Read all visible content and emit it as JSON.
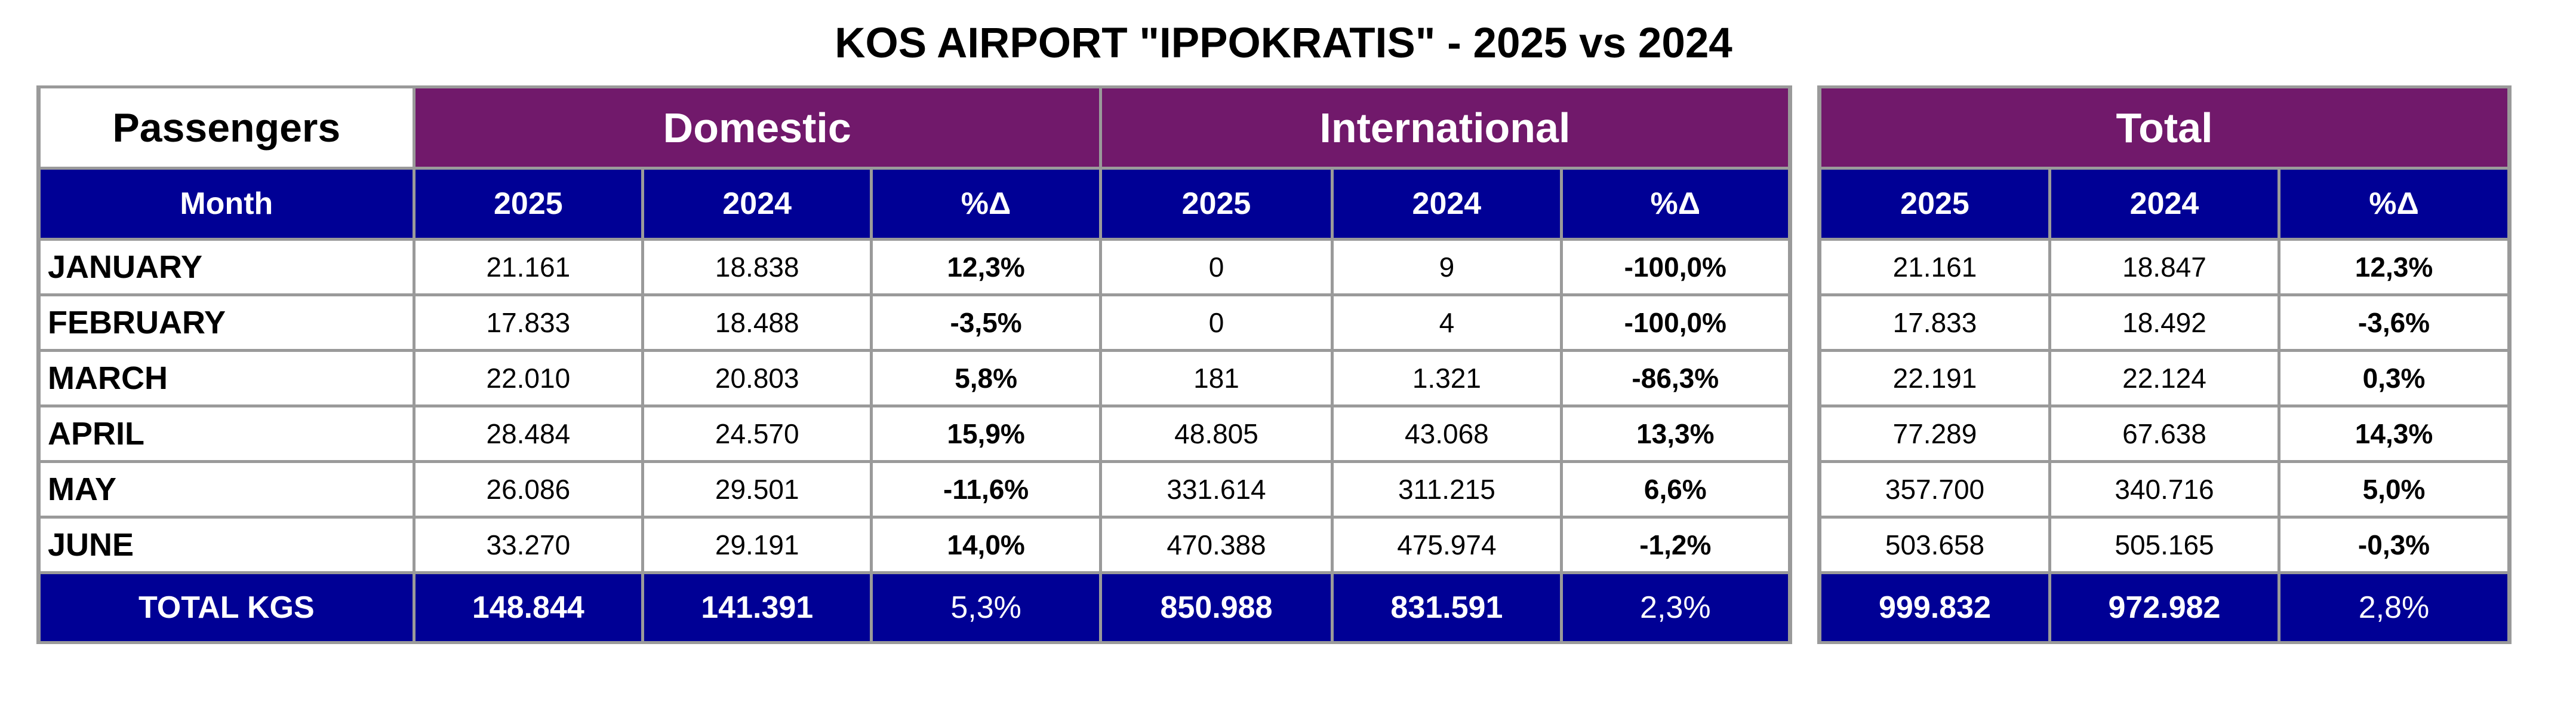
{
  "title": "KOS AIRPORT \"IPPOKRATIS\" - 2025 vs 2024",
  "header": {
    "passengers": "Passengers",
    "domestic": "Domestic",
    "international": "International",
    "total": "Total"
  },
  "columns": {
    "month": "Month",
    "y2025": "2025",
    "y2024": "2024",
    "pct": "%Δ"
  },
  "colors": {
    "group_header": "#71196b",
    "column_header": "#000095",
    "border": "#9a9a9a"
  },
  "rows": [
    {
      "month": "JANUARY",
      "dom_2025": "21.161",
      "dom_2024": "18.838",
      "dom_pct": "12,3%",
      "int_2025": "0",
      "int_2024": "9",
      "int_pct": "-100,0%",
      "tot_2025": "21.161",
      "tot_2024": "18.847",
      "tot_pct": "12,3%"
    },
    {
      "month": "FEBRUARY",
      "dom_2025": "17.833",
      "dom_2024": "18.488",
      "dom_pct": "-3,5%",
      "int_2025": "0",
      "int_2024": "4",
      "int_pct": "-100,0%",
      "tot_2025": "17.833",
      "tot_2024": "18.492",
      "tot_pct": "-3,6%"
    },
    {
      "month": "MARCH",
      "dom_2025": "22.010",
      "dom_2024": "20.803",
      "dom_pct": "5,8%",
      "int_2025": "181",
      "int_2024": "1.321",
      "int_pct": "-86,3%",
      "tot_2025": "22.191",
      "tot_2024": "22.124",
      "tot_pct": "0,3%"
    },
    {
      "month": "APRIL",
      "dom_2025": "28.484",
      "dom_2024": "24.570",
      "dom_pct": "15,9%",
      "int_2025": "48.805",
      "int_2024": "43.068",
      "int_pct": "13,3%",
      "tot_2025": "77.289",
      "tot_2024": "67.638",
      "tot_pct": "14,3%"
    },
    {
      "month": "MAY",
      "dom_2025": "26.086",
      "dom_2024": "29.501",
      "dom_pct": "-11,6%",
      "int_2025": "331.614",
      "int_2024": "311.215",
      "int_pct": "6,6%",
      "tot_2025": "357.700",
      "tot_2024": "340.716",
      "tot_pct": "5,0%"
    },
    {
      "month": "JUNE",
      "dom_2025": "33.270",
      "dom_2024": "29.191",
      "dom_pct": "14,0%",
      "int_2025": "470.388",
      "int_2024": "475.974",
      "int_pct": "-1,2%",
      "tot_2025": "503.658",
      "tot_2024": "505.165",
      "tot_pct": "-0,3%"
    }
  ],
  "totals": {
    "label": "TOTAL KGS",
    "dom_2025": "148.844",
    "dom_2024": "141.391",
    "dom_pct": "5,3%",
    "int_2025": "850.988",
    "int_2024": "831.591",
    "int_pct": "2,3%",
    "tot_2025": "999.832",
    "tot_2024": "972.982",
    "tot_pct": "2,8%"
  }
}
